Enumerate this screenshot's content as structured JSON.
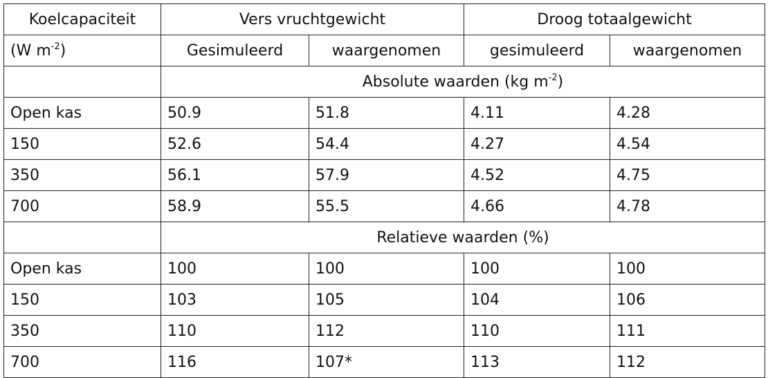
{
  "header": {
    "col_koel": "Koelcapaciteit",
    "col_vers": "Vers vruchtgewicht",
    "col_droog": "Droog totaalgewicht",
    "unit_prefix": "(W m",
    "unit_exp": "-2",
    "unit_suffix": ")",
    "sub": [
      "Gesimuleerd",
      "waargenomen",
      "gesimuleerd",
      "waargenomen"
    ]
  },
  "absolute_section": {
    "prefix": "Absolute waarden (kg m",
    "exp": "-2",
    "suffix": ")"
  },
  "relative_section": {
    "label": "Relatieve waarden (%)"
  },
  "absolute_rows": [
    [
      "Open kas",
      "50.9",
      "51.8",
      "4.11",
      "4.28"
    ],
    [
      "150",
      "52.6",
      "54.4",
      "4.27",
      "4.54"
    ],
    [
      "350",
      "56.1",
      "57.9",
      "4.52",
      "4.75"
    ],
    [
      "700",
      "58.9",
      "55.5",
      "4.66",
      "4.78"
    ]
  ],
  "relative_rows": [
    [
      "Open kas",
      "100",
      "100",
      "100",
      "100"
    ],
    [
      "150",
      "103",
      "105",
      "104",
      "106"
    ],
    [
      "350",
      "110",
      "112",
      "110",
      "111"
    ],
    [
      "700",
      "116",
      "107*",
      "113",
      "112"
    ]
  ]
}
